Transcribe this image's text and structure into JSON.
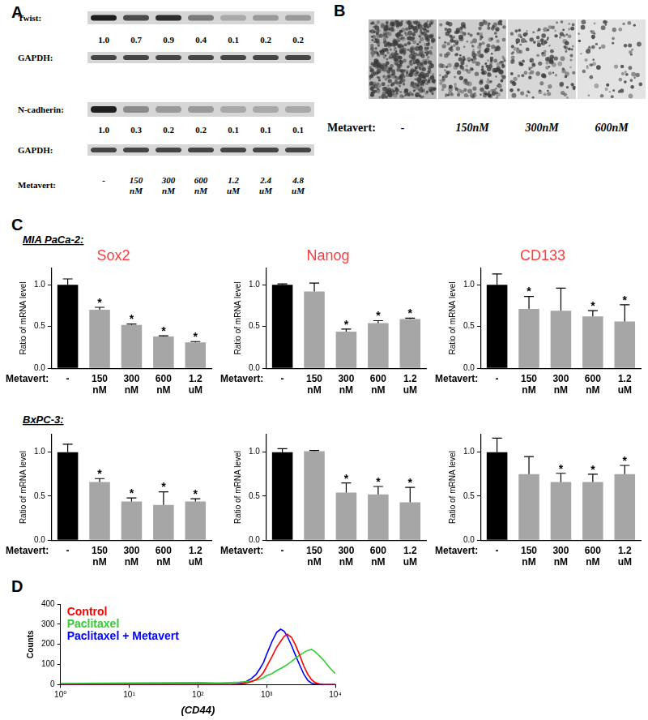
{
  "panel_labels": [
    "A",
    "B",
    "C",
    "D"
  ],
  "blots": {
    "treatment_label": "Metavert:",
    "lanes": [
      "-",
      "150 nM",
      "300 nM",
      "600 nM",
      "1.2 uM",
      "2.4 uM",
      "4.8 uM"
    ],
    "rows": [
      {
        "protein": "Twist:",
        "ratios": [
          "1.0",
          "0.7",
          "0.9",
          "0.4",
          "0.1",
          "0.2",
          "0.2"
        ]
      },
      {
        "protein": "GAPDH:"
      },
      {
        "protein": "N-cadherin:",
        "ratios": [
          "1.0",
          "0.3",
          "0.2",
          "0.2",
          "0.1",
          "0.1",
          "0.1"
        ]
      },
      {
        "protein": "GAPDH:"
      }
    ]
  },
  "micrographs": {
    "treatment_label": "Metavert:",
    "conditions": [
      "-",
      "150nM",
      "300nM",
      "600nM"
    ]
  },
  "cell_lines": [
    "MIA PaCa-2:",
    "BxPC-3:"
  ],
  "chart_data": [
    {
      "type": "bar",
      "title": "Sox2",
      "x_label": "Metavert:",
      "y_label": "Ratio of mRNA level",
      "categories": [
        "-",
        "150 nM",
        "300 nM",
        "600 nM",
        "1.2 uM"
      ],
      "values": [
        1.0,
        0.7,
        0.52,
        0.38,
        0.31
      ],
      "errors": [
        0.07,
        0.03,
        0.01,
        0.01,
        0.01
      ],
      "annotations": [
        null,
        "*",
        "*",
        "*",
        "*"
      ],
      "colors": [
        "#000000",
        "#a6a6a6",
        "#a6a6a6",
        "#a6a6a6",
        "#a6a6a6"
      ],
      "ylim": [
        0,
        1.2
      ],
      "yticks": [
        {
          "value": 0,
          "label": "0.0"
        },
        {
          "value": 0.5,
          "label": "0.5"
        },
        {
          "value": 1,
          "label": "1.0"
        }
      ],
      "grid": false
    },
    {
      "type": "bar",
      "title": "Nanog",
      "x_label": "Metavert:",
      "y_label": "Ratio of mRNA level",
      "categories": [
        "-",
        "150 nM",
        "300 nM",
        "600 nM",
        "1.2 uM"
      ],
      "values": [
        1.0,
        0.92,
        0.44,
        0.54,
        0.59
      ],
      "errors": [
        0.01,
        0.1,
        0.03,
        0.03,
        0.01
      ],
      "annotations": [
        null,
        null,
        "*",
        "*",
        "*"
      ],
      "colors": [
        "#000000",
        "#a6a6a6",
        "#a6a6a6",
        "#a6a6a6",
        "#a6a6a6"
      ],
      "ylim": [
        0,
        1.2
      ],
      "yticks": [
        {
          "value": 0,
          "label": "0.0"
        },
        {
          "value": 0.5,
          "label": "0.5"
        },
        {
          "value": 1,
          "label": "1.0"
        }
      ],
      "grid": false
    },
    {
      "type": "bar",
      "title": "CD133",
      "x_label": "Metavert:",
      "y_label": "Ratio of mRNA level",
      "categories": [
        "-",
        "150 nM",
        "300 nM",
        "600 nM",
        "1.2 uM"
      ],
      "values": [
        1.0,
        0.71,
        0.69,
        0.62,
        0.56
      ],
      "errors": [
        0.13,
        0.15,
        0.27,
        0.07,
        0.2
      ],
      "annotations": [
        null,
        "*",
        null,
        "*",
        "*"
      ],
      "colors": [
        "#000000",
        "#a6a6a6",
        "#a6a6a6",
        "#a6a6a6",
        "#a6a6a6"
      ],
      "ylim": [
        0,
        1.2
      ],
      "yticks": [
        {
          "value": 0,
          "label": "0.0"
        },
        {
          "value": 0.5,
          "label": "0.5"
        },
        {
          "value": 1,
          "label": "1.0"
        }
      ],
      "grid": false
    },
    {
      "type": "bar",
      "x_label": "Metavert:",
      "y_label": "Ratio of mRNA level",
      "categories": [
        "-",
        "150 nM",
        "300 nM",
        "600 nM",
        "1.2 uM"
      ],
      "values": [
        1.0,
        0.66,
        0.44,
        0.4,
        0.44
      ],
      "errors": [
        0.09,
        0.04,
        0.04,
        0.15,
        0.03
      ],
      "annotations": [
        null,
        "*",
        "*",
        "*",
        "*"
      ],
      "colors": [
        "#000000",
        "#a6a6a6",
        "#a6a6a6",
        "#a6a6a6",
        "#a6a6a6"
      ],
      "ylim": [
        0,
        1.2
      ],
      "yticks": [
        {
          "value": 0,
          "label": "0.0"
        },
        {
          "value": 0.5,
          "label": "0.5"
        },
        {
          "value": 1,
          "label": "1.0"
        }
      ],
      "grid": false
    },
    {
      "type": "bar",
      "x_label": "Metavert:",
      "y_label": "Ratio of mRNA level",
      "categories": [
        "-",
        "150 nM",
        "300 nM",
        "600 nM",
        "1.2 uM"
      ],
      "values": [
        1.0,
        1.01,
        0.54,
        0.52,
        0.43
      ],
      "errors": [
        0.04,
        0.01,
        0.11,
        0.09,
        0.17
      ],
      "annotations": [
        null,
        null,
        "*",
        "*",
        "*"
      ],
      "colors": [
        "#000000",
        "#a6a6a6",
        "#a6a6a6",
        "#a6a6a6",
        "#a6a6a6"
      ],
      "ylim": [
        0,
        1.2
      ],
      "yticks": [
        {
          "value": 0,
          "label": "0.0"
        },
        {
          "value": 0.5,
          "label": "0.5"
        },
        {
          "value": 1,
          "label": "1.0"
        }
      ],
      "grid": false
    },
    {
      "type": "bar",
      "x_label": "Metavert:",
      "y_label": "Ratio of mRNA level",
      "categories": [
        "-",
        "150 nM",
        "300 nM",
        "600 nM",
        "1.2 uM"
      ],
      "values": [
        1.0,
        0.75,
        0.66,
        0.66,
        0.75
      ],
      "errors": [
        0.16,
        0.2,
        0.1,
        0.09,
        0.1
      ],
      "annotations": [
        null,
        null,
        "*",
        "*",
        "*"
      ],
      "colors": [
        "#000000",
        "#a6a6a6",
        "#a6a6a6",
        "#a6a6a6",
        "#a6a6a6"
      ],
      "ylim": [
        0,
        1.2
      ],
      "yticks": [
        {
          "value": 0,
          "label": "0.0"
        },
        {
          "value": 0.5,
          "label": "0.5"
        },
        {
          "value": 1,
          "label": "1.0"
        }
      ],
      "grid": false
    },
    {
      "type": "line",
      "x_label": "(CD44)",
      "y_label": "Counts",
      "log": "x",
      "x": [
        1,
        10,
        100,
        200,
        300,
        400,
        500,
        600,
        700,
        800,
        900,
        1000,
        1200,
        1400,
        1600,
        1800,
        2000,
        2300,
        2600,
        3000,
        3500,
        4000,
        4500,
        5000,
        6000,
        7000,
        8000,
        9000,
        10000
      ],
      "series": [
        {
          "name": "Control",
          "color": "#ff0000",
          "values": [
            0,
            0,
            0,
            0,
            0,
            2,
            8,
            15,
            25,
            40,
            60,
            90,
            140,
            185,
            215,
            240,
            250,
            235,
            200,
            150,
            90,
            50,
            25,
            12,
            3,
            0,
            0,
            0,
            0
          ]
        },
        {
          "name": "Paclitaxel",
          "color": "#33cc33",
          "values": [
            5,
            8,
            10,
            8,
            10,
            12,
            15,
            18,
            22,
            28,
            35,
            45,
            55,
            70,
            80,
            90,
            100,
            115,
            130,
            145,
            160,
            170,
            175,
            165,
            140,
            115,
            90,
            70,
            55
          ]
        },
        {
          "name": "Paclitaxel + Metavert",
          "color": "#0000ff",
          "values": [
            0,
            0,
            0,
            0,
            0,
            5,
            15,
            30,
            50,
            80,
            110,
            150,
            215,
            260,
            275,
            265,
            240,
            195,
            150,
            100,
            50,
            20,
            8,
            3,
            0,
            0,
            0,
            0,
            0
          ]
        }
      ],
      "xlim": [
        1,
        10000
      ],
      "xticks": [
        {
          "value": 1,
          "label": "10⁰"
        },
        {
          "value": 10,
          "label": "10¹"
        },
        {
          "value": 100,
          "label": "10²"
        },
        {
          "value": 1000,
          "label": "10³"
        },
        {
          "value": 10000,
          "label": "10⁴"
        }
      ],
      "ylim": [
        0,
        400
      ],
      "yticks": [
        0,
        100,
        200,
        300,
        400
      ],
      "legend": "top-left",
      "grid": false
    }
  ]
}
